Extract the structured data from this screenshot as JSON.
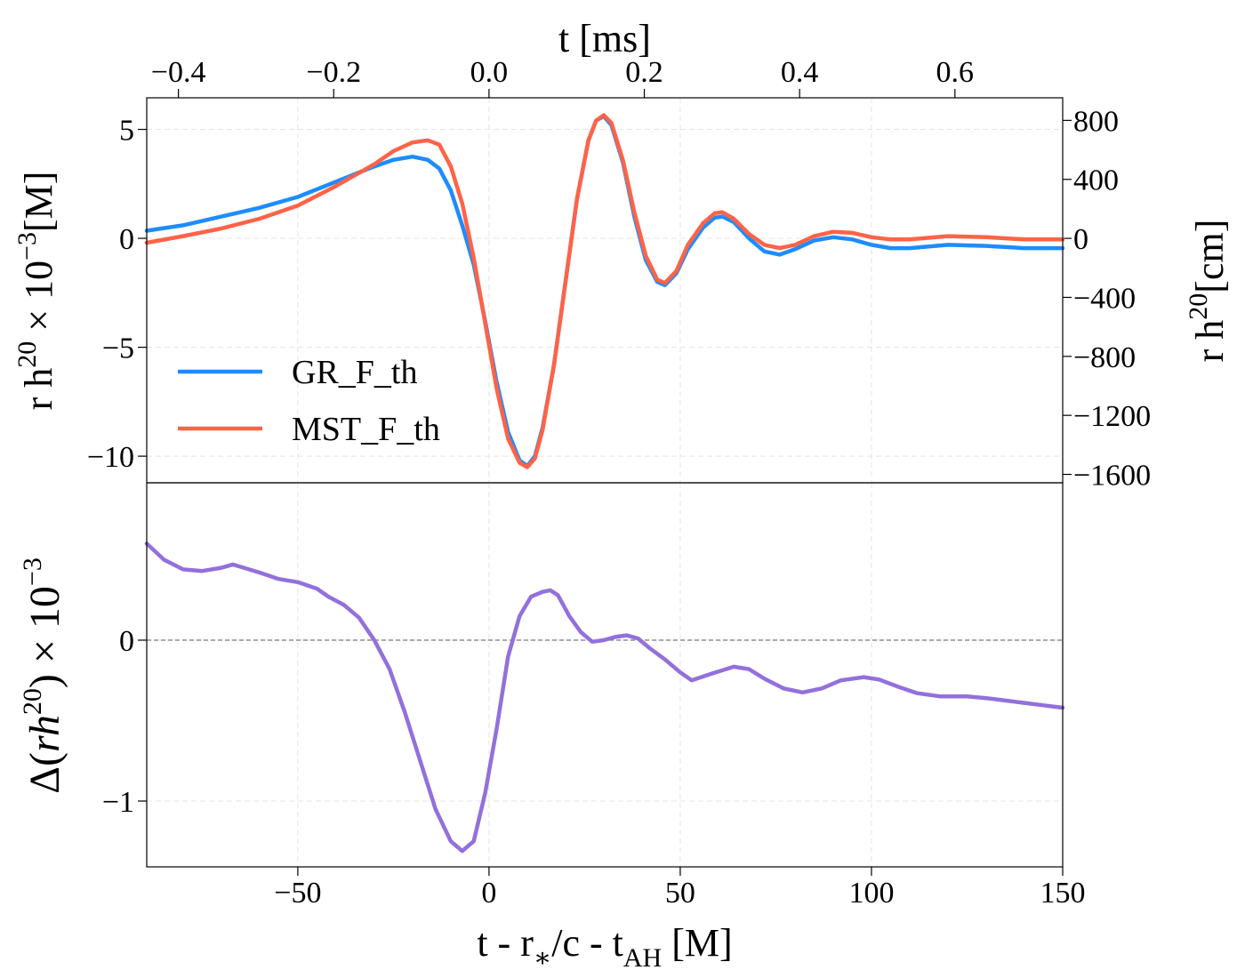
{
  "chart_data": [
    {
      "type": "line",
      "xlim": [
        -89.5,
        150
      ],
      "ylim": [
        -11.22,
        6.45
      ],
      "yticks": [
        {
          "value": -10,
          "label": "−10"
        },
        {
          "value": -5,
          "label": "−5"
        },
        0,
        5
      ],
      "ylabel": [
        "r h",
        "20",
        " × 10",
        "−3",
        "[M]"
      ],
      "y2lim": [
        -1657,
        953
      ],
      "y2ticks": [
        {
          "value": -1600,
          "label": "−1600"
        },
        {
          "value": -1200,
          "label": "−1200"
        },
        {
          "value": -800,
          "label": "−800"
        },
        {
          "value": -400,
          "label": "−400"
        },
        0,
        400,
        800
      ],
      "y2label": [
        "r h",
        "20",
        "[cm]"
      ],
      "x2lim": [
        -0.4408,
        0.7388
      ],
      "x2ticks": [
        {
          "value": -0.4,
          "label": "−0.4"
        },
        {
          "value": -0.2,
          "label": "−0.2"
        },
        {
          "value": 0,
          "label": "0.0"
        },
        0.2,
        0.4,
        0.6
      ],
      "x2label": "t [ms]",
      "grid": true,
      "legend": "lower left",
      "x": [
        -89.5,
        -80,
        -70,
        -60,
        -50,
        -40,
        -30,
        -25,
        -20,
        -16,
        -13,
        -10,
        -7,
        -4,
        -1,
        2,
        5,
        8,
        10,
        12,
        14,
        17,
        20,
        23,
        26,
        28,
        30,
        32,
        35,
        38,
        41,
        44,
        46,
        49,
        52,
        56,
        59,
        61,
        64,
        68,
        72,
        76,
        80,
        85,
        90,
        95,
        100,
        105,
        110,
        120,
        130,
        140,
        150
      ],
      "series": [
        {
          "name": "GR_F_th",
          "color": "#1e8cff",
          "values": [
            0.35,
            0.6,
            1.0,
            1.4,
            1.9,
            2.6,
            3.3,
            3.6,
            3.75,
            3.6,
            3.2,
            2.2,
            0.6,
            -1.2,
            -3.8,
            -6.6,
            -8.9,
            -10.2,
            -10.45,
            -10.0,
            -8.7,
            -5.8,
            -2.0,
            1.8,
            4.5,
            5.4,
            5.6,
            5.2,
            3.5,
            1.0,
            -1.0,
            -2.0,
            -2.15,
            -1.6,
            -0.5,
            0.5,
            0.95,
            1.0,
            0.75,
            0.0,
            -0.6,
            -0.75,
            -0.5,
            -0.1,
            0.05,
            -0.05,
            -0.3,
            -0.45,
            -0.45,
            -0.3,
            -0.35,
            -0.45,
            -0.45
          ]
        },
        {
          "name": "MST_F_th",
          "color": "#ff6347",
          "values": [
            -0.2,
            0.1,
            0.45,
            0.9,
            1.5,
            2.4,
            3.4,
            4.0,
            4.4,
            4.5,
            4.3,
            3.3,
            1.6,
            -0.9,
            -3.9,
            -6.9,
            -9.2,
            -10.3,
            -10.5,
            -10.1,
            -8.8,
            -5.8,
            -2.0,
            1.8,
            4.5,
            5.4,
            5.65,
            5.3,
            3.6,
            1.2,
            -0.8,
            -1.9,
            -2.05,
            -1.5,
            -0.3,
            0.7,
            1.15,
            1.2,
            0.9,
            0.2,
            -0.3,
            -0.45,
            -0.3,
            0.1,
            0.3,
            0.25,
            0.05,
            -0.05,
            -0.05,
            0.1,
            0.05,
            -0.05,
            -0.05
          ]
        }
      ]
    },
    {
      "type": "line",
      "xlim": [
        -89.5,
        150
      ],
      "xticks": [
        {
          "value": -50,
          "label": "−50"
        },
        0,
        50,
        100,
        150
      ],
      "xlabel": [
        "t - r",
        "∗",
        "/c - t",
        "AH",
        " [M]"
      ],
      "ylim": [
        -1.409,
        0.978
      ],
      "yticks": [
        {
          "value": -1,
          "label": "−1"
        },
        0
      ],
      "ylabel": [
        "Δ(",
        "rh",
        "20",
        ") × 10",
        "−3"
      ],
      "hline": 0,
      "grid": true,
      "x": [
        -89.5,
        -85,
        -80,
        -75,
        -70,
        -67,
        -60,
        -55,
        -50,
        -45,
        -42,
        -38,
        -34,
        -30,
        -26,
        -22,
        -18,
        -14,
        -10,
        -7,
        -4,
        -1,
        2,
        5,
        8,
        11,
        14,
        16,
        18,
        21,
        24,
        27,
        30,
        33,
        36,
        39,
        42,
        46,
        50,
        53,
        58,
        64,
        68,
        72,
        77,
        82,
        87,
        92,
        98,
        102,
        107,
        112,
        118,
        125,
        130,
        135,
        140,
        145,
        150
      ],
      "series": [
        {
          "color": "#9370db",
          "values": [
            0.6,
            0.5,
            0.44,
            0.43,
            0.45,
            0.47,
            0.42,
            0.38,
            0.36,
            0.32,
            0.27,
            0.22,
            0.14,
            0.0,
            -0.18,
            -0.45,
            -0.75,
            -1.05,
            -1.25,
            -1.31,
            -1.25,
            -0.95,
            -0.55,
            -0.1,
            0.15,
            0.27,
            0.3,
            0.31,
            0.28,
            0.15,
            0.05,
            -0.01,
            0.0,
            0.02,
            0.03,
            0.01,
            -0.05,
            -0.12,
            -0.2,
            -0.25,
            -0.21,
            -0.165,
            -0.18,
            -0.24,
            -0.3,
            -0.325,
            -0.3,
            -0.25,
            -0.23,
            -0.245,
            -0.29,
            -0.33,
            -0.35,
            -0.35,
            -0.36,
            -0.375,
            -0.39,
            -0.405,
            -0.42
          ]
        }
      ]
    }
  ]
}
